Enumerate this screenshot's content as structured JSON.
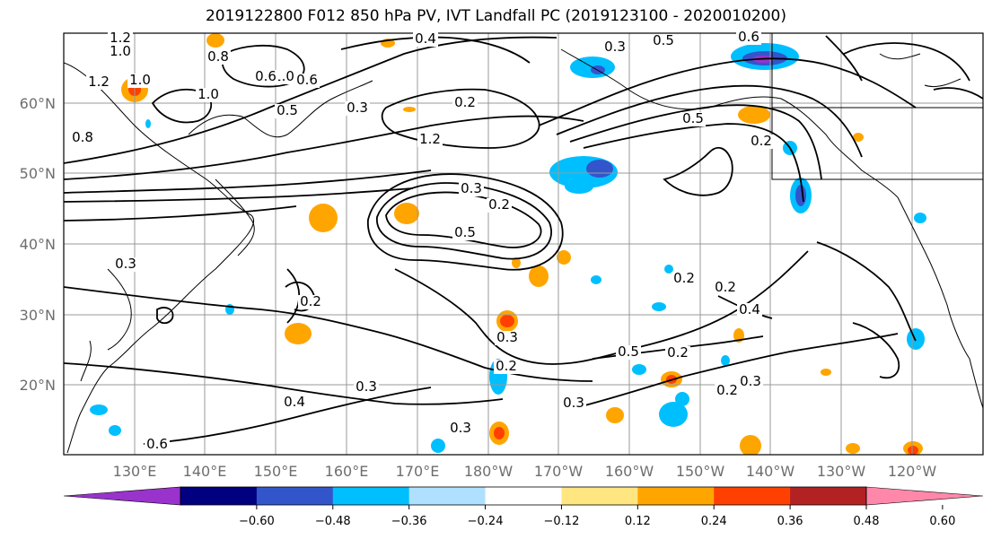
{
  "title": "2019122800 F012 850 hPa PV, IVT Landfall PC (2019123100 - 2020010200)",
  "map": {
    "lat_labels": [
      "60°N",
      "50°N",
      "40°N",
      "30°N",
      "20°N"
    ],
    "lon_labels": [
      "130°E",
      "140°E",
      "150°E",
      "160°E",
      "170°E",
      "180°W",
      "170°W",
      "160°W",
      "150°W",
      "140°W",
      "130°W",
      "120°W"
    ],
    "contour_labels": [
      "1.2",
      "1.0",
      "0.8",
      "1.0",
      "0.4",
      "1.2",
      "1.0",
      "0.6",
      "0.5",
      "0.3",
      "0.2",
      "1.2",
      "0.8",
      "1.0",
      "0.6",
      "0.3",
      "0.5",
      "0.6",
      "0.5",
      "0.2",
      "0.3",
      "0.2",
      "0.5",
      "0.3",
      "0.2",
      "0.2",
      "0.3",
      "0.2",
      "0.2",
      "0.4",
      "0.5",
      "0.2",
      "0.3",
      "0.4",
      "0.3",
      "0.3",
      "0.6",
      "0.2",
      "0.3"
    ]
  },
  "colorbar": {
    "ticks": [
      "−0.60",
      "−0.48",
      "−0.36",
      "−0.24",
      "−0.12",
      "0.12",
      "0.24",
      "0.36",
      "0.48",
      "0.60"
    ],
    "colors": [
      "#9933cc",
      "#000080",
      "#3355cc",
      "#00bfff",
      "#b0e0ff",
      "#ffffff",
      "#ffe680",
      "#ffa500",
      "#ff4000",
      "#b22222",
      "#ff88aa"
    ]
  },
  "colors": {
    "negative_fill": "#00bfff",
    "positive_fill": "#ffa500",
    "grid": "#999999",
    "contour": "#000000"
  }
}
